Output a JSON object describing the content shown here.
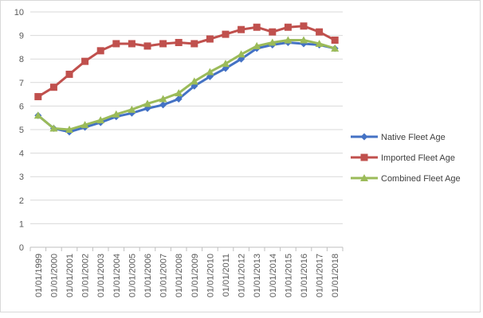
{
  "chart_data": {
    "type": "line",
    "title": "",
    "xlabel": "",
    "ylabel": "",
    "ylim": [
      0,
      10
    ],
    "ytick_step": 1,
    "grid": true,
    "legend_position": "right",
    "categories": [
      "01/01/1999",
      "01/01/2000",
      "01/01/2001",
      "01/01/2002",
      "01/01/2003",
      "01/01/2004",
      "01/01/2005",
      "01/01/2006",
      "01/01/2007",
      "01/01/2008",
      "01/01/2009",
      "01/01/2010",
      "01/01/2011",
      "01/01/2012",
      "01/01/2013",
      "01/01/2014",
      "01/01/2015",
      "01/01/2016",
      "01/01/2017",
      "01/01/2018"
    ],
    "series": [
      {
        "name": "Native Fleet Age",
        "color": "#4472c4",
        "marker": "diamond",
        "values": [
          5.6,
          5.05,
          4.9,
          5.1,
          5.3,
          5.55,
          5.7,
          5.9,
          6.05,
          6.3,
          6.85,
          7.25,
          7.6,
          8.0,
          8.45,
          8.6,
          8.7,
          8.65,
          8.6,
          8.45
        ]
      },
      {
        "name": "Imported Fleet Age",
        "color": "#c0504d",
        "marker": "square",
        "values": [
          6.4,
          6.8,
          7.35,
          7.9,
          8.35,
          8.65,
          8.65,
          8.55,
          8.65,
          8.7,
          8.65,
          8.85,
          9.05,
          9.25,
          9.35,
          9.15,
          9.35,
          9.4,
          9.15,
          8.8
        ]
      },
      {
        "name": "Combined Fleet Age",
        "color": "#9bbb59",
        "marker": "triangle",
        "values": [
          5.6,
          5.05,
          5.0,
          5.2,
          5.4,
          5.65,
          5.85,
          6.1,
          6.3,
          6.55,
          7.05,
          7.45,
          7.8,
          8.2,
          8.55,
          8.7,
          8.8,
          8.8,
          8.65,
          8.45
        ]
      }
    ]
  }
}
